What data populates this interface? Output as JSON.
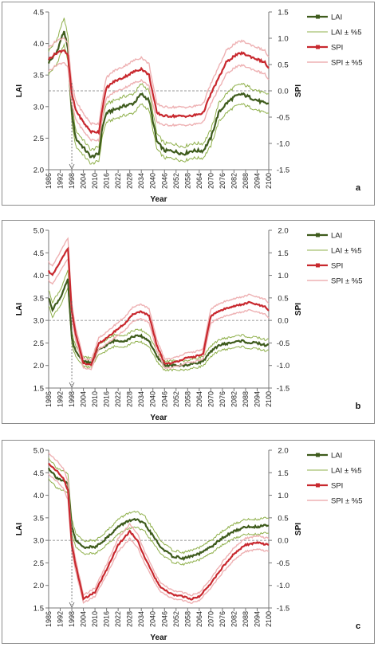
{
  "colors": {
    "lai": "#3e5b1c",
    "lai_band": "#8fb04b",
    "spi": "#c8282e",
    "spi_band": "#eeb1b3",
    "axis": "#777777",
    "ref": "#7a7a7a"
  },
  "legend": {
    "lai": "LAI",
    "lai_band": "LAI ± %5",
    "spi": "SPI",
    "spi_band": "SPI ± %5"
  },
  "chart_data": [
    {
      "type": "line",
      "panel_label": "a",
      "xlabel": "Year",
      "ylabel_left": "LAI",
      "ylabel_right": "SPI",
      "xlim": [
        1986,
        2100
      ],
      "ylim_left": [
        2.0,
        4.5
      ],
      "ylim_right": [
        -1.5,
        1.5
      ],
      "yticks_left": [
        "2.0",
        "2.5",
        "3.0",
        "3.5",
        "4.0",
        "4.5"
      ],
      "yticks_right": [
        "-1.5",
        "-1.0",
        "-0.5",
        "0.0",
        "0.5",
        "1.0",
        "1.5"
      ],
      "xticks": [
        "1986",
        "1992",
        "1998",
        "2004",
        "2010",
        "2016",
        "2022",
        "2028",
        "2034",
        "2040",
        "2046",
        "2052",
        "2058",
        "2064",
        "2070",
        "2076",
        "2082",
        "2088",
        "2094",
        "2100"
      ],
      "reference_spi": 0.0,
      "marker_year": 1998,
      "band_pct": 5,
      "x": [
        1986,
        1990,
        1994,
        1996,
        1998,
        2000,
        2004,
        2008,
        2012,
        2014,
        2016,
        2020,
        2024,
        2030,
        2034,
        2038,
        2042,
        2046,
        2050,
        2056,
        2060,
        2066,
        2070,
        2074,
        2078,
        2082,
        2086,
        2090,
        2094,
        2098,
        2100
      ],
      "series": [
        {
          "name": "LAI",
          "axis": "left",
          "values": [
            3.7,
            3.85,
            4.2,
            3.9,
            2.9,
            2.5,
            2.35,
            2.2,
            2.25,
            2.7,
            2.9,
            2.95,
            3.0,
            3.05,
            3.2,
            3.1,
            2.45,
            2.3,
            2.3,
            2.25,
            2.3,
            2.3,
            2.5,
            2.9,
            3.05,
            3.15,
            3.2,
            3.15,
            3.1,
            3.05,
            3.05
          ]
        },
        {
          "name": "SPI",
          "axis": "left",
          "values": [
            3.75,
            3.85,
            3.9,
            3.8,
            3.2,
            2.95,
            2.75,
            2.6,
            2.6,
            3.0,
            3.3,
            3.4,
            3.45,
            3.55,
            3.6,
            3.5,
            2.9,
            2.85,
            2.85,
            2.85,
            2.85,
            2.9,
            3.2,
            3.45,
            3.7,
            3.8,
            3.85,
            3.8,
            3.75,
            3.7,
            3.6
          ]
        }
      ]
    },
    {
      "type": "line",
      "panel_label": "b",
      "xlabel": "Year",
      "ylabel_left": "LAI",
      "ylabel_right": "SPI",
      "xlim": [
        1986,
        2100
      ],
      "ylim_left": [
        1.5,
        5.0
      ],
      "ylim_right": [
        -1.5,
        2.0
      ],
      "yticks_left": [
        "1.5",
        "2.0",
        "2.5",
        "3.0",
        "3.5",
        "4.0",
        "4.5",
        "5.0"
      ],
      "yticks_right": [
        "-1.5",
        "-1.0",
        "-0.5",
        "0.0",
        "0.5",
        "1.0",
        "1.5",
        "2.0"
      ],
      "xticks": [
        "1986",
        "1992",
        "1998",
        "2004",
        "2010",
        "2016",
        "2022",
        "2028",
        "2034",
        "2040",
        "2046",
        "2052",
        "2058",
        "2064",
        "2070",
        "2076",
        "2082",
        "2088",
        "2094",
        "2100"
      ],
      "reference_spi": 0.0,
      "marker_year": 1998,
      "band_pct": 5,
      "x": [
        1986,
        1988,
        1992,
        1996,
        1998,
        2000,
        2004,
        2008,
        2012,
        2016,
        2020,
        2026,
        2030,
        2034,
        2038,
        2042,
        2046,
        2050,
        2056,
        2062,
        2066,
        2070,
        2074,
        2080,
        2086,
        2090,
        2094,
        2098,
        2100
      ],
      "series": [
        {
          "name": "LAI",
          "axis": "left",
          "values": [
            3.5,
            3.25,
            3.5,
            3.9,
            2.6,
            2.3,
            2.1,
            2.05,
            2.35,
            2.45,
            2.55,
            2.55,
            2.65,
            2.65,
            2.55,
            2.2,
            2.0,
            2.0,
            2.0,
            2.05,
            2.1,
            2.3,
            2.45,
            2.5,
            2.55,
            2.5,
            2.5,
            2.45,
            2.45
          ]
        },
        {
          "name": "SPI",
          "axis": "left",
          "values": [
            4.1,
            4.0,
            4.3,
            4.6,
            3.2,
            2.7,
            2.05,
            2.0,
            2.5,
            2.6,
            2.75,
            2.95,
            3.15,
            3.2,
            3.1,
            2.45,
            2.05,
            2.05,
            2.15,
            2.2,
            2.25,
            3.1,
            3.2,
            3.3,
            3.35,
            3.4,
            3.35,
            3.3,
            3.2
          ]
        }
      ]
    },
    {
      "type": "line",
      "panel_label": "c",
      "xlabel": "Year",
      "ylabel_left": "LAI",
      "ylabel_right": "SPI",
      "xlim": [
        1986,
        2100
      ],
      "ylim_left": [
        1.5,
        5.0
      ],
      "ylim_right": [
        -1.5,
        2.0
      ],
      "yticks_left": [
        "1.5",
        "2.0",
        "2.5",
        "3.0",
        "3.5",
        "4.0",
        "4.5",
        "5.0"
      ],
      "yticks_right": [
        "-1.5",
        "-1.0",
        "-0.5",
        "0.0",
        "0.5",
        "1.0",
        "1.5",
        "2.0"
      ],
      "xticks": [
        "1986",
        "1992",
        "1998",
        "2004",
        "2010",
        "2016",
        "2022",
        "2028",
        "2034",
        "2040",
        "2046",
        "2052",
        "2058",
        "2064",
        "2070",
        "2076",
        "2082",
        "2088",
        "2094",
        "2100"
      ],
      "reference_spi": 0.0,
      "marker_year": 1998,
      "band_pct": 5,
      "x": [
        1986,
        1990,
        1994,
        1996,
        1998,
        2000,
        2004,
        2010,
        2016,
        2022,
        2028,
        2032,
        2036,
        2040,
        2044,
        2050,
        2056,
        2060,
        2064,
        2070,
        2076,
        2082,
        2088,
        2094,
        2100
      ],
      "series": [
        {
          "name": "LAI",
          "axis": "left",
          "values": [
            4.6,
            4.4,
            4.3,
            4.25,
            3.3,
            3.0,
            2.85,
            2.85,
            3.05,
            3.3,
            3.45,
            3.45,
            3.35,
            3.1,
            2.85,
            2.65,
            2.6,
            2.65,
            2.7,
            2.85,
            3.05,
            3.2,
            3.3,
            3.3,
            3.35
          ]
        },
        {
          "name": "SPI",
          "axis": "left",
          "values": [
            4.7,
            4.55,
            4.35,
            4.1,
            2.9,
            2.45,
            1.7,
            1.85,
            2.35,
            2.9,
            3.2,
            3.0,
            2.6,
            2.25,
            1.95,
            1.8,
            1.75,
            1.7,
            1.75,
            2.05,
            2.4,
            2.7,
            2.9,
            2.95,
            2.9
          ]
        }
      ]
    }
  ]
}
